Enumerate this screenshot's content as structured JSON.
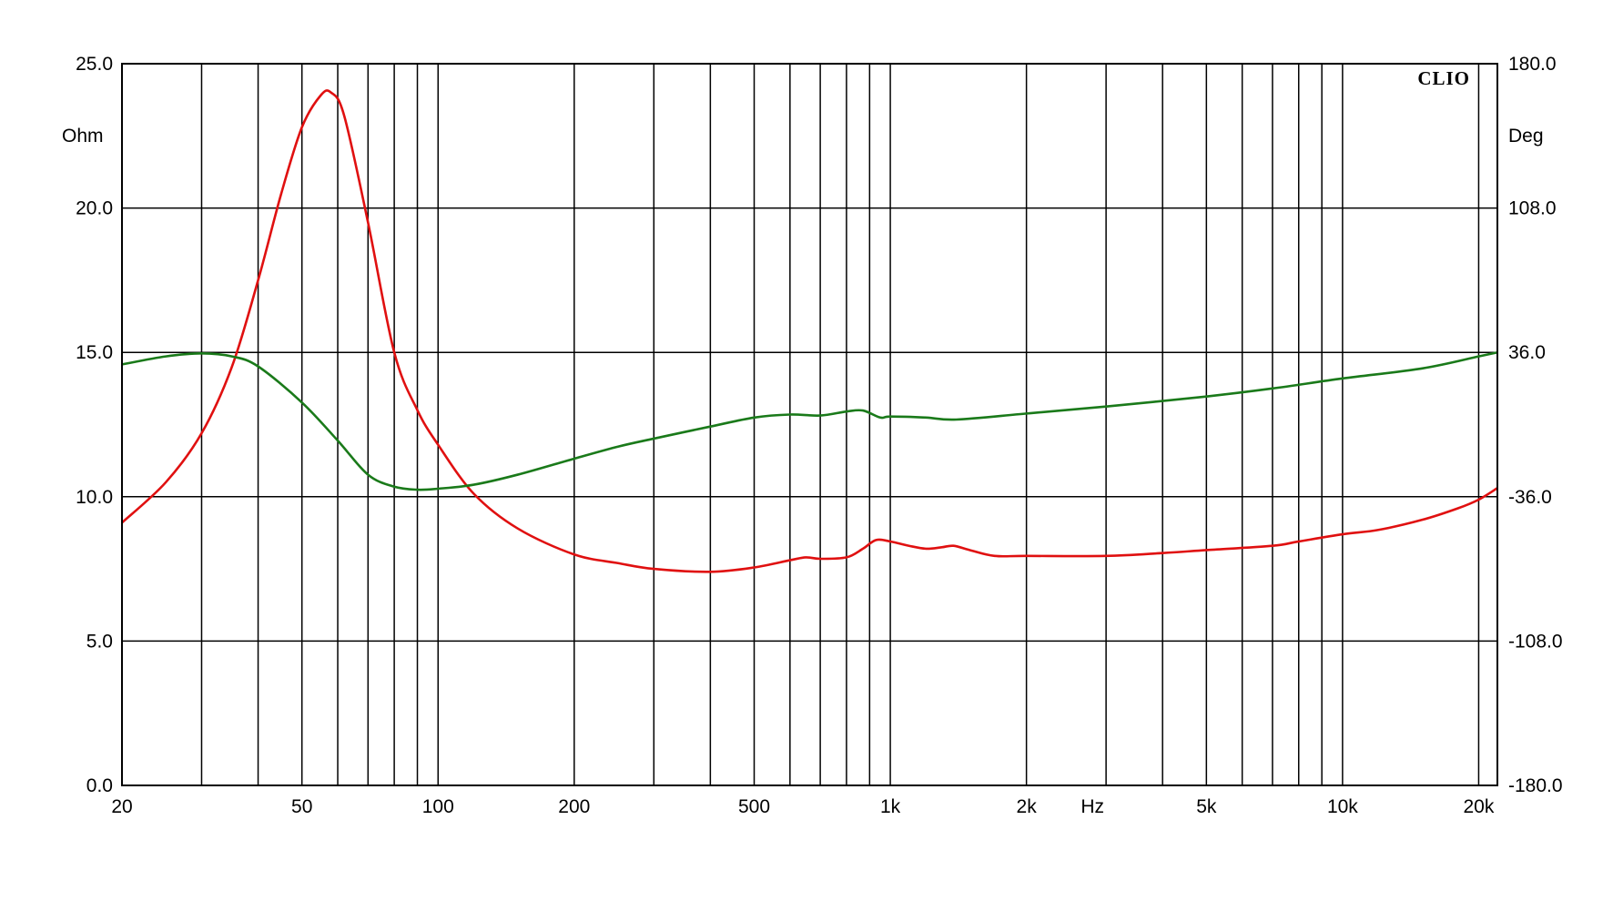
{
  "chart_data": {
    "type": "line",
    "brand": "CLIO",
    "x_scale": "log",
    "xlim": [
      20,
      22000
    ],
    "x_unit": "Hz",
    "x_ticks": [
      {
        "value": 20,
        "label": "20"
      },
      {
        "value": 50,
        "label": "50"
      },
      {
        "value": 100,
        "label": "100"
      },
      {
        "value": 200,
        "label": "200"
      },
      {
        "value": 500,
        "label": "500"
      },
      {
        "value": 1000,
        "label": "1k"
      },
      {
        "value": 2000,
        "label": "2k"
      },
      {
        "value": 5000,
        "label": "5k"
      },
      {
        "value": 10000,
        "label": "10k"
      },
      {
        "value": 20000,
        "label": "20k"
      }
    ],
    "y_left": {
      "unit": "Ohm",
      "range": [
        0,
        25
      ],
      "ticks": [
        "0.0",
        "5.0",
        "10.0",
        "15.0",
        "20.0",
        "25.0"
      ]
    },
    "y_right": {
      "unit": "Deg",
      "range": [
        -180,
        180
      ],
      "ticks": [
        "-180.0",
        "-108.0",
        "-36.0",
        "36.0",
        "108.0",
        "180.0"
      ]
    },
    "grid": true,
    "series": [
      {
        "color": "#e01010",
        "axis": "left",
        "points": [
          [
            20,
            9.1
          ],
          [
            25,
            10.5
          ],
          [
            30,
            12.2
          ],
          [
            35,
            14.5
          ],
          [
            40,
            17.5
          ],
          [
            45,
            20.5
          ],
          [
            50,
            22.8
          ],
          [
            55,
            23.9
          ],
          [
            58,
            24.0
          ],
          [
            62,
            23.2
          ],
          [
            70,
            19.5
          ],
          [
            80,
            15.0
          ],
          [
            90,
            13.0
          ],
          [
            100,
            11.8
          ],
          [
            120,
            10.1
          ],
          [
            150,
            8.9
          ],
          [
            200,
            8.0
          ],
          [
            250,
            7.7
          ],
          [
            300,
            7.5
          ],
          [
            400,
            7.4
          ],
          [
            500,
            7.55
          ],
          [
            600,
            7.8
          ],
          [
            650,
            7.9
          ],
          [
            700,
            7.85
          ],
          [
            800,
            7.9
          ],
          [
            870,
            8.2
          ],
          [
            930,
            8.5
          ],
          [
            1000,
            8.45
          ],
          [
            1100,
            8.3
          ],
          [
            1200,
            8.2
          ],
          [
            1300,
            8.25
          ],
          [
            1380,
            8.3
          ],
          [
            1500,
            8.15
          ],
          [
            1700,
            7.95
          ],
          [
            2000,
            7.95
          ],
          [
            3000,
            7.95
          ],
          [
            4000,
            8.05
          ],
          [
            5000,
            8.15
          ],
          [
            7000,
            8.3
          ],
          [
            8000,
            8.45
          ],
          [
            10000,
            8.7
          ],
          [
            12000,
            8.85
          ],
          [
            15000,
            9.2
          ],
          [
            18000,
            9.6
          ],
          [
            20000,
            9.9
          ],
          [
            22000,
            10.3
          ]
        ]
      },
      {
        "color": "#1a7a1a",
        "axis": "right",
        "points": [
          [
            20,
            30
          ],
          [
            25,
            34
          ],
          [
            30,
            35.5
          ],
          [
            35,
            34
          ],
          [
            40,
            29
          ],
          [
            50,
            11
          ],
          [
            60,
            -8
          ],
          [
            70,
            -25
          ],
          [
            80,
            -31
          ],
          [
            90,
            -32.5
          ],
          [
            100,
            -32
          ],
          [
            120,
            -30
          ],
          [
            150,
            -25
          ],
          [
            200,
            -17
          ],
          [
            250,
            -11
          ],
          [
            300,
            -7
          ],
          [
            400,
            -1
          ],
          [
            500,
            3.5
          ],
          [
            600,
            5
          ],
          [
            700,
            4.5
          ],
          [
            800,
            6.5
          ],
          [
            870,
            7
          ],
          [
            950,
            3.5
          ],
          [
            1000,
            4
          ],
          [
            1200,
            3.5
          ],
          [
            1400,
            2.5
          ],
          [
            2000,
            5.5
          ],
          [
            3000,
            9
          ],
          [
            5000,
            14
          ],
          [
            7000,
            18
          ],
          [
            10000,
            23
          ],
          [
            15000,
            28
          ],
          [
            20000,
            34
          ],
          [
            22000,
            36
          ]
        ]
      }
    ]
  }
}
